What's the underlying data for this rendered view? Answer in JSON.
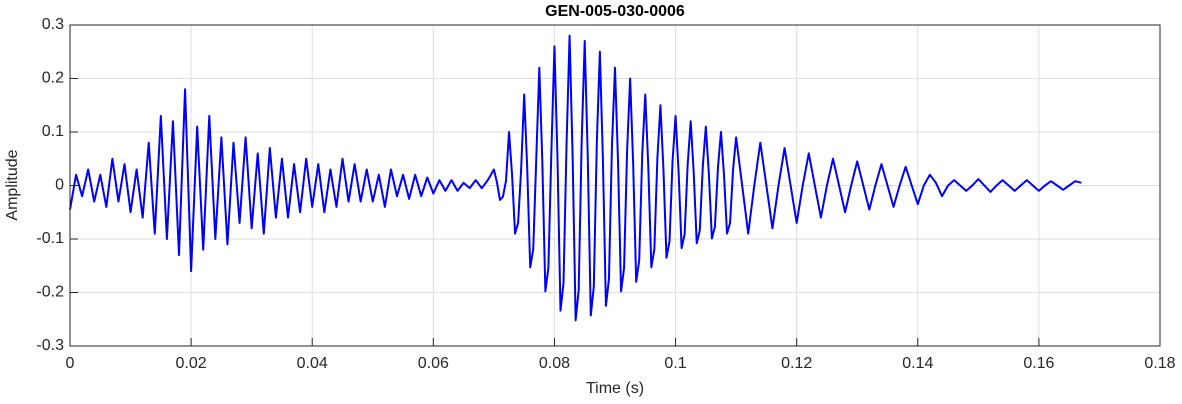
{
  "chart_data": {
    "type": "line",
    "title": "GEN-005-030-0006",
    "xlabel": "Time (s)",
    "ylabel": "Amplitude",
    "color": "#0000ff",
    "grid": true,
    "xlim": [
      0,
      0.18
    ],
    "ylim": [
      -0.3,
      0.3
    ],
    "xticks": [
      0,
      0.02,
      0.04,
      0.06,
      0.08,
      0.1,
      0.12,
      0.14,
      0.16,
      0.18
    ],
    "yticks": [
      -0.3,
      -0.2,
      -0.1,
      0,
      0.1,
      0.2,
      0.3
    ],
    "x": [
      0,
      0.001,
      0.002,
      0.003,
      0.004,
      0.005,
      0.006,
      0.007,
      0.008,
      0.009,
      0.01,
      0.011,
      0.012,
      0.013,
      0.014,
      0.015,
      0.016,
      0.017,
      0.018,
      0.019,
      0.02,
      0.021,
      0.022,
      0.023,
      0.024,
      0.025,
      0.026,
      0.027,
      0.028,
      0.029,
      0.03,
      0.031,
      0.032,
      0.033,
      0.034,
      0.035,
      0.036,
      0.037,
      0.038,
      0.039,
      0.04,
      0.041,
      0.042,
      0.043,
      0.044,
      0.045,
      0.046,
      0.047,
      0.048,
      0.049,
      0.05,
      0.051,
      0.052,
      0.053,
      0.054,
      0.055,
      0.056,
      0.057,
      0.058,
      0.059,
      0.06,
      0.061,
      0.062,
      0.063,
      0.064,
      0.065,
      0.066,
      0.067,
      0.068,
      0.069,
      0.07,
      0.0705,
      0.071,
      0.0715,
      0.072,
      0.0725,
      0.073,
      0.0735,
      0.074,
      0.0745,
      0.075,
      0.0755,
      0.076,
      0.0765,
      0.077,
      0.0775,
      0.078,
      0.0785,
      0.079,
      0.0795,
      0.08,
      0.0805,
      0.081,
      0.0815,
      0.082,
      0.0825,
      0.083,
      0.0835,
      0.084,
      0.0845,
      0.085,
      0.0855,
      0.086,
      0.0865,
      0.087,
      0.0875,
      0.088,
      0.0885,
      0.089,
      0.0895,
      0.09,
      0.0905,
      0.091,
      0.0915,
      0.092,
      0.0925,
      0.093,
      0.0935,
      0.094,
      0.0945,
      0.095,
      0.0955,
      0.096,
      0.0965,
      0.097,
      0.0975,
      0.098,
      0.0985,
      0.099,
      0.0995,
      0.1,
      0.1005,
      0.101,
      0.1015,
      0.102,
      0.1025,
      0.103,
      0.1035,
      0.104,
      0.1045,
      0.105,
      0.1055,
      0.106,
      0.1065,
      0.107,
      0.1075,
      0.108,
      0.1085,
      0.109,
      0.1095,
      0.11,
      0.111,
      0.112,
      0.113,
      0.114,
      0.115,
      0.116,
      0.117,
      0.118,
      0.119,
      0.12,
      0.121,
      0.122,
      0.123,
      0.124,
      0.125,
      0.126,
      0.127,
      0.128,
      0.129,
      0.13,
      0.131,
      0.132,
      0.133,
      0.134,
      0.135,
      0.136,
      0.137,
      0.138,
      0.139,
      0.14,
      0.141,
      0.142,
      0.143,
      0.144,
      0.145,
      0.146,
      0.147,
      0.148,
      0.149,
      0.15,
      0.151,
      0.152,
      0.153,
      0.154,
      0.155,
      0.156,
      0.157,
      0.158,
      0.159,
      0.16,
      0.161,
      0.162,
      0.163,
      0.164,
      0.165,
      0.166,
      0.167
    ],
    "values": [
      -0.045,
      0.02,
      -0.02,
      0.03,
      -0.03,
      0.02,
      -0.04,
      0.05,
      -0.03,
      0.04,
      -0.05,
      0.03,
      -0.06,
      0.08,
      -0.09,
      0.13,
      -0.1,
      0.12,
      -0.13,
      0.18,
      -0.16,
      0.11,
      -0.12,
      0.13,
      -0.1,
      0.09,
      -0.11,
      0.08,
      -0.07,
      0.09,
      -0.08,
      0.06,
      -0.09,
      0.07,
      -0.06,
      0.05,
      -0.06,
      0.04,
      -0.05,
      0.05,
      -0.04,
      0.04,
      -0.05,
      0.03,
      -0.04,
      0.05,
      -0.03,
      0.04,
      -0.03,
      0.03,
      -0.03,
      0.02,
      -0.04,
      0.03,
      -0.02,
      0.02,
      -0.025,
      0.02,
      -0.02,
      0.015,
      -0.015,
      0.01,
      -0.01,
      0.01,
      -0.01,
      0.005,
      -0.005,
      0.01,
      -0.005,
      0.01,
      0.03,
      0.006,
      -0.027,
      -0.021,
      0.009,
      0.1,
      0.02,
      -0.09,
      -0.07,
      0.03,
      0.17,
      0.034,
      -0.153,
      -0.119,
      0.051,
      0.22,
      0.044,
      -0.198,
      -0.154,
      0.066,
      0.26,
      0.052,
      -0.234,
      -0.182,
      0.078,
      0.28,
      0.056,
      -0.252,
      -0.196,
      0.084,
      0.27,
      0.054,
      -0.243,
      -0.189,
      0.081,
      0.25,
      0.05,
      -0.225,
      -0.175,
      0.075,
      0.22,
      0.044,
      -0.198,
      -0.154,
      0.066,
      0.2,
      0.04,
      -0.18,
      -0.14,
      0.06,
      0.17,
      0.034,
      -0.153,
      -0.119,
      0.051,
      0.15,
      0.03,
      -0.135,
      -0.105,
      0.045,
      0.13,
      0.026,
      -0.117,
      -0.091,
      0.039,
      0.12,
      0.024,
      -0.108,
      -0.084,
      0.036,
      0.11,
      0.022,
      -0.099,
      -0.077,
      0.033,
      0.1,
      0.02,
      -0.09,
      -0.07,
      0.03,
      0.09,
      0,
      -0.09,
      0,
      0.08,
      0,
      -0.08,
      0,
      0.07,
      0,
      -0.07,
      0,
      0.06,
      0,
      -0.06,
      0,
      0.05,
      0,
      -0.05,
      0,
      0.045,
      0,
      -0.045,
      0,
      0.04,
      0,
      -0.04,
      0,
      0.035,
      0,
      -0.035,
      0,
      0.02,
      0.005,
      -0.02,
      0,
      0.01,
      0,
      -0.01,
      0,
      0.012,
      0,
      -0.012,
      0,
      0.01,
      0,
      -0.01,
      0,
      0.01,
      0,
      -0.01,
      0,
      0.008,
      0,
      -0.008,
      0,
      0.008,
      0.005
    ]
  }
}
